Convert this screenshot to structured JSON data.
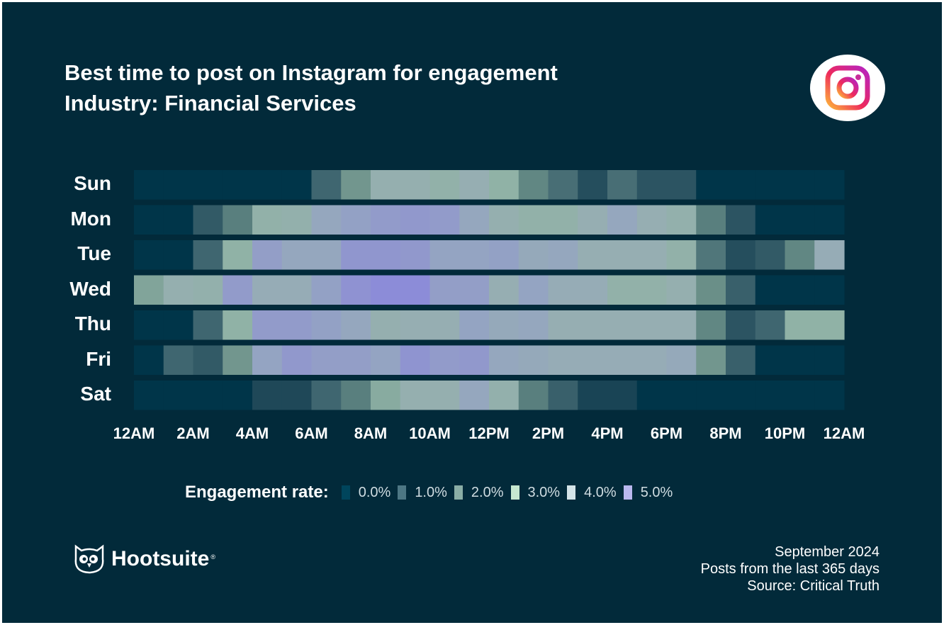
{
  "chart_data": {
    "type": "heatmap",
    "title": "Best time to post on Instagram for engagement",
    "subtitle": "Industry: Financial Services",
    "rows": [
      "Sun",
      "Mon",
      "Tue",
      "Wed",
      "Thu",
      "Fri",
      "Sat"
    ],
    "x_tick_labels": [
      "12AM",
      "2AM",
      "4AM",
      "6AM",
      "8AM",
      "10AM",
      "12PM",
      "2PM",
      "4PM",
      "6PM",
      "8PM",
      "10PM",
      "12AM"
    ],
    "columns": "24 hourly slots, 12AM to 12AM",
    "unit": "%",
    "values": [
      [
        0,
        0,
        0,
        0,
        0,
        0,
        1.0,
        1.6,
        2.3,
        2.3,
        2.1,
        2.4,
        2.0,
        1.4,
        1.1,
        0.6,
        1.1,
        0.7,
        0.7,
        0,
        0,
        0,
        0,
        0
      ],
      [
        0,
        0,
        0.8,
        1.3,
        2.1,
        2.2,
        2.7,
        2.9,
        3.1,
        3.2,
        3.1,
        2.7,
        2.3,
        2.1,
        2.1,
        2.4,
        2.7,
        2.4,
        2.2,
        1.3,
        0.7,
        0,
        0,
        0
      ],
      [
        0,
        0,
        1.0,
        2.0,
        3.0,
        2.7,
        2.7,
        3.3,
        3.3,
        3.2,
        2.8,
        2.8,
        2.9,
        2.6,
        2.7,
        2.4,
        2.4,
        2.4,
        2.1,
        1.2,
        0.6,
        0.8,
        1.4,
        2.5
      ],
      [
        1.8,
        2.3,
        2.2,
        3.1,
        2.5,
        2.5,
        2.9,
        3.5,
        3.8,
        3.8,
        3.0,
        3.0,
        2.4,
        2.8,
        2.5,
        2.5,
        2.1,
        2.1,
        2.3,
        1.5,
        0.9,
        0,
        0,
        0
      ],
      [
        0,
        0,
        1.0,
        2.0,
        3.1,
        3.1,
        2.9,
        2.7,
        2.3,
        2.4,
        2.4,
        2.8,
        2.6,
        2.7,
        2.4,
        2.4,
        2.4,
        2.4,
        2.4,
        1.4,
        0.7,
        1.0,
        2.0,
        2.0
      ],
      [
        0,
        1.0,
        0.8,
        1.6,
        2.8,
        3.2,
        3.0,
        3.0,
        2.8,
        3.4,
        3.1,
        3.2,
        2.7,
        2.6,
        2.5,
        2.5,
        2.5,
        2.5,
        2.6,
        1.6,
        0.9,
        0,
        0,
        0
      ],
      [
        0,
        0,
        0,
        0,
        0.5,
        0.5,
        1.0,
        1.3,
        1.9,
        2.3,
        2.3,
        2.7,
        2.2,
        1.3,
        0.9,
        0.4,
        0.4,
        0,
        0,
        0,
        0,
        0,
        0,
        0
      ]
    ],
    "legend": {
      "title": "Engagement rate:",
      "items": [
        {
          "label": "0.0%",
          "color": "#00455c"
        },
        {
          "label": "1.0%",
          "color": "#4d7784"
        },
        {
          "label": "2.0%",
          "color": "#8aaea6"
        },
        {
          "label": "3.0%",
          "color": "#c6e8d0"
        },
        {
          "label": "4.0%",
          "color": "#d4e4e8"
        },
        {
          "label": "5.0%",
          "color": "#bab8ee"
        }
      ],
      "placement": "bottom"
    }
  },
  "brand": {
    "name": "Hootsuite",
    "logo_icon": "owl-icon",
    "platform_icon": "instagram-icon"
  },
  "footer": [
    "September 2024",
    "Posts from the last 365 days",
    "Source: Critical Truth"
  ]
}
